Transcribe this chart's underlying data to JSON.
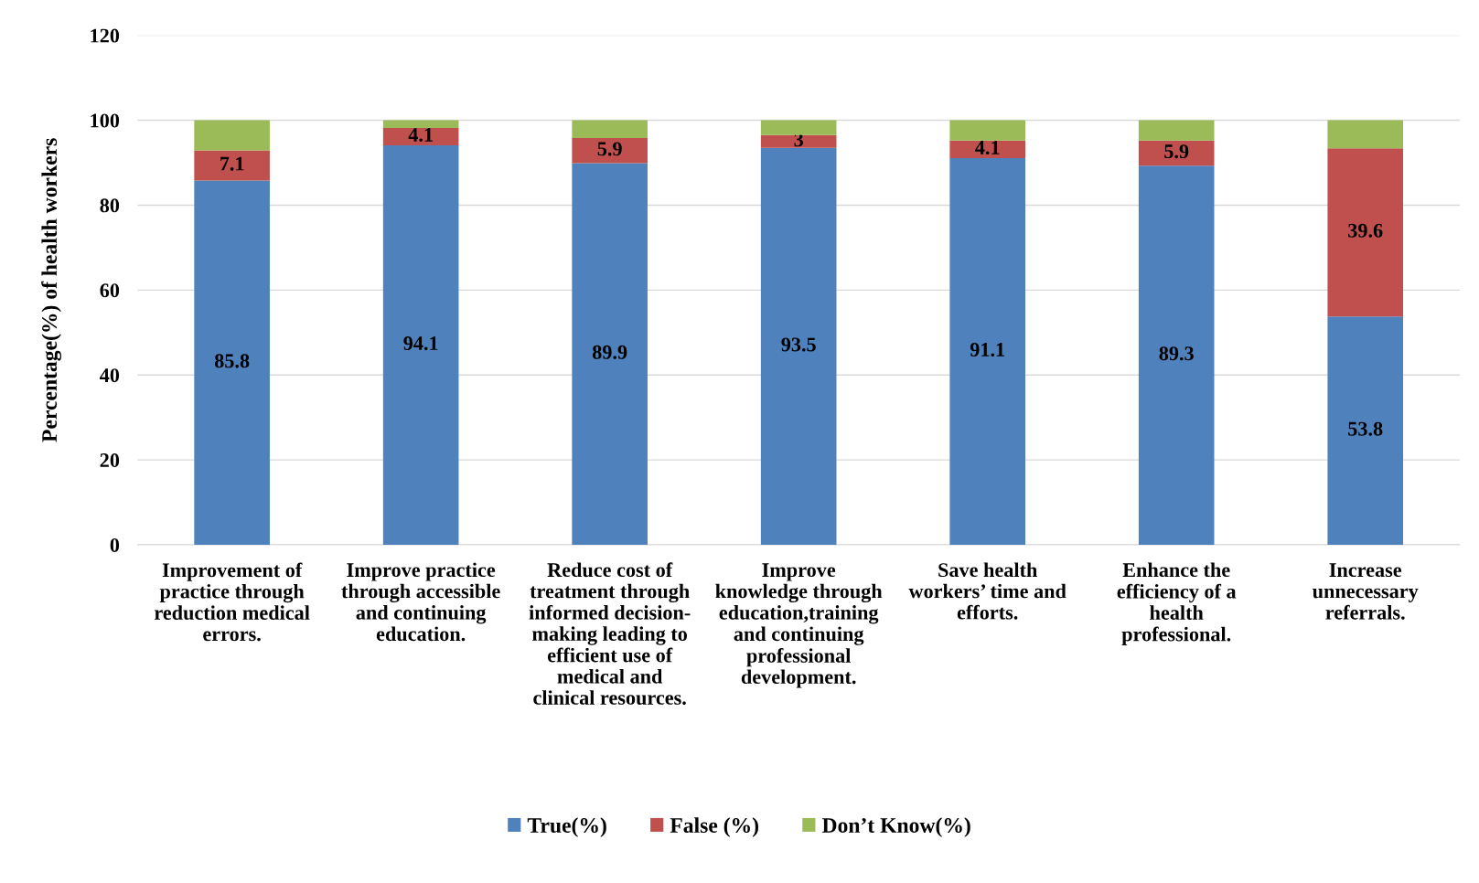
{
  "chart_data": {
    "type": "bar",
    "stacked": true,
    "ylabel": "Percentage(%) of health workers",
    "categories": [
      "Improvement of\npractice through\nreduction medical\nerrors.",
      "Improve practice\nthrough accessible\nand continuing\neducation.",
      "Reduce cost of\ntreatment through\ninformed decision-\nmaking leading to\nefficient use of\nmedical and\nclinical resources.",
      "Improve\nknowledge through\neducation,training\nand continuing\nprofessional\ndevelopment.",
      "Save health\nworkers’ time and\nefforts.",
      "Enhance the\nefficiency of a\nhealth\nprofessional.",
      "Increase\nunnecessary\nreferrals."
    ],
    "series": [
      {
        "name": "True(%)",
        "color": "#4f81bd",
        "values": [
          85.8,
          94.1,
          89.9,
          93.5,
          91.1,
          89.3,
          53.8
        ],
        "value_labels": [
          "85.8",
          "94.1",
          "89.9",
          "93.5",
          "91.1",
          "89.3",
          "53.8"
        ]
      },
      {
        "name": "False (%)",
        "color": "#c0504d",
        "values": [
          7.1,
          4.1,
          5.9,
          3,
          4.1,
          5.9,
          39.6
        ],
        "value_labels": [
          "7.1",
          "4.1",
          "5.9",
          "3",
          "4.1",
          "5.9",
          "39.6"
        ]
      },
      {
        "name": "Don’t Know(%)",
        "color": "#9bbb59",
        "values": [
          7.1,
          1.8,
          4.2,
          3.5,
          4.8,
          4.8,
          6.6
        ]
      }
    ],
    "ylim": [
      0,
      120
    ],
    "yticks": [
      0,
      20,
      40,
      60,
      80,
      100,
      120
    ],
    "grid": "y",
    "legend": "bottom"
  }
}
